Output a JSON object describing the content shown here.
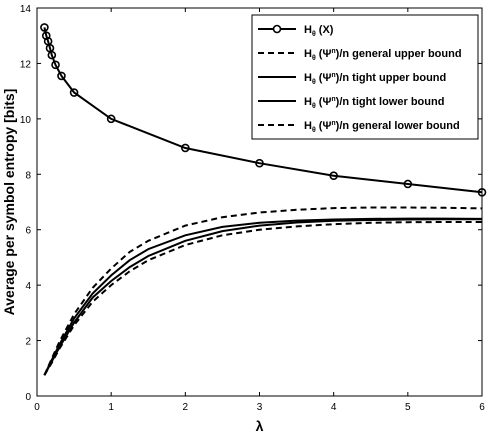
{
  "chart_data": {
    "type": "line",
    "xlabel": "λ",
    "ylabel": "Average per symbol entropy [bits]",
    "xlim": [
      0,
      6
    ],
    "ylim": [
      0,
      14
    ],
    "xticks": [
      "0",
      "1",
      "2",
      "3",
      "4",
      "5",
      "6"
    ],
    "yticks": [
      "0",
      "2",
      "4",
      "6",
      "8",
      "10",
      "12",
      "14"
    ],
    "grid": false,
    "legend_position": "top-right",
    "series": [
      {
        "name_parts": [
          "H",
          "θ",
          " (X)",
          ""
        ],
        "style": "solid-circle",
        "x": [
          0.1,
          0.125,
          0.15,
          0.175,
          0.2,
          0.25,
          0.33,
          0.5,
          1,
          2,
          3,
          4,
          5,
          6
        ],
        "y": [
          13.3,
          13.0,
          12.8,
          12.55,
          12.3,
          11.95,
          11.55,
          10.95,
          10.0,
          8.95,
          8.4,
          7.95,
          7.65,
          7.35
        ]
      },
      {
        "name_parts": [
          "H",
          "θ",
          " (Ψ",
          "n",
          ")/n general upper bound"
        ],
        "style": "dashed",
        "x": [
          0.1,
          0.2,
          0.3,
          0.5,
          0.75,
          1,
          1.25,
          1.5,
          2,
          2.5,
          3,
          3.5,
          4,
          4.5,
          5,
          5.5,
          6
        ],
        "y": [
          0.75,
          1.35,
          1.95,
          2.95,
          3.9,
          4.6,
          5.2,
          5.6,
          6.15,
          6.45,
          6.62,
          6.72,
          6.78,
          6.8,
          6.8,
          6.79,
          6.77
        ]
      },
      {
        "name_parts": [
          "H",
          "θ",
          " (Ψ",
          "n",
          ")/n tight upper bound"
        ],
        "style": "solid",
        "x": [
          0.1,
          0.2,
          0.3,
          0.5,
          0.75,
          1,
          1.25,
          1.5,
          2,
          2.5,
          3,
          3.5,
          4,
          4.5,
          5,
          5.5,
          6
        ],
        "y": [
          0.75,
          1.3,
          1.85,
          2.8,
          3.7,
          4.35,
          4.9,
          5.3,
          5.8,
          6.1,
          6.25,
          6.33,
          6.37,
          6.39,
          6.4,
          6.4,
          6.39
        ]
      },
      {
        "name_parts": [
          "H",
          "θ",
          " (Ψ",
          "n",
          ")/n tight lower bound"
        ],
        "style": "solid",
        "x": [
          0.1,
          0.2,
          0.3,
          0.5,
          0.75,
          1,
          1.25,
          1.5,
          2,
          2.5,
          3,
          3.5,
          4,
          4.5,
          5,
          5.5,
          6
        ],
        "y": [
          0.75,
          1.25,
          1.75,
          2.65,
          3.55,
          4.15,
          4.65,
          5.05,
          5.6,
          5.95,
          6.15,
          6.26,
          6.32,
          6.35,
          6.37,
          6.38,
          6.38
        ]
      },
      {
        "name_parts": [
          "H",
          "θ",
          " (Ψ",
          "n",
          ")/n general lower bound"
        ],
        "style": "dashed",
        "x": [
          0.1,
          0.2,
          0.3,
          0.5,
          0.75,
          1,
          1.25,
          1.5,
          2,
          2.5,
          3,
          3.5,
          4,
          4.5,
          5,
          5.5,
          6
        ],
        "y": [
          0.75,
          1.2,
          1.7,
          2.55,
          3.4,
          4.0,
          4.5,
          4.9,
          5.45,
          5.8,
          6.0,
          6.12,
          6.2,
          6.25,
          6.27,
          6.28,
          6.28
        ]
      }
    ]
  }
}
